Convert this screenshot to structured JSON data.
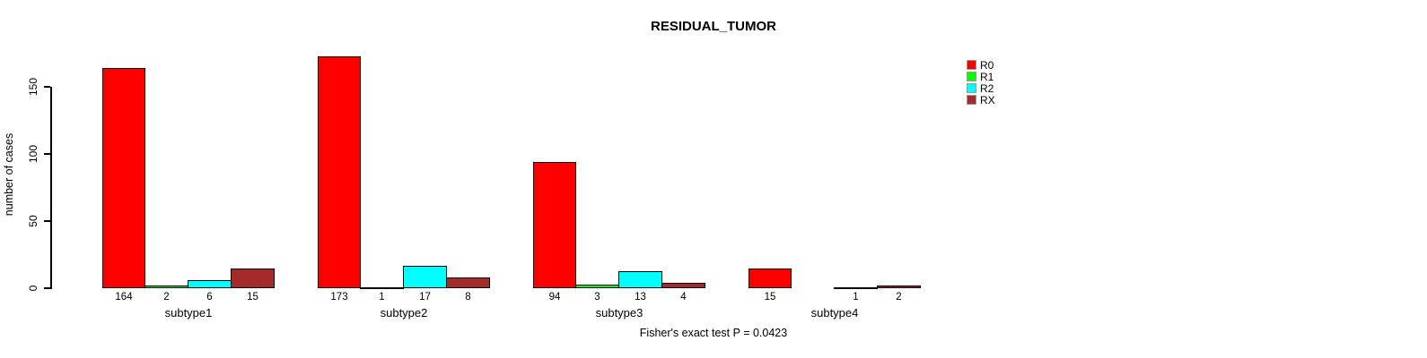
{
  "title": "RESIDUAL_TUMOR",
  "footer_note": "Fisher's exact test P = 0.0423",
  "chart_data": {
    "type": "bar",
    "grouped": true,
    "title": "RESIDUAL_TUMOR",
    "ylabel": "number of cases",
    "xlabel": "",
    "categories": [
      "subtype1",
      "subtype2",
      "subtype3",
      "subtype4"
    ],
    "series": [
      {
        "name": "R0",
        "color": "#FF0000",
        "values": [
          164,
          173,
          94,
          15
        ]
      },
      {
        "name": "R1",
        "color": "#00FF00",
        "values": [
          2,
          1,
          3,
          0
        ]
      },
      {
        "name": "R2",
        "color": "#00FFFF",
        "values": [
          6,
          17,
          13,
          1
        ]
      },
      {
        "name": "RX",
        "color": "#A52A2A",
        "values": [
          15,
          8,
          4,
          2
        ]
      }
    ],
    "yticks": [
      0,
      50,
      100,
      150
    ],
    "ylim": [
      0,
      180
    ],
    "grid": false,
    "legend_position": "right",
    "legend_entries": [
      "R0",
      "R1",
      "R2",
      "RX"
    ],
    "value_labels_under_bars": true,
    "zero_values_unlabeled": true,
    "annotation": "Fisher's exact test P = 0.0423",
    "axis_color": "#000000",
    "background_color": "#ffffff"
  }
}
